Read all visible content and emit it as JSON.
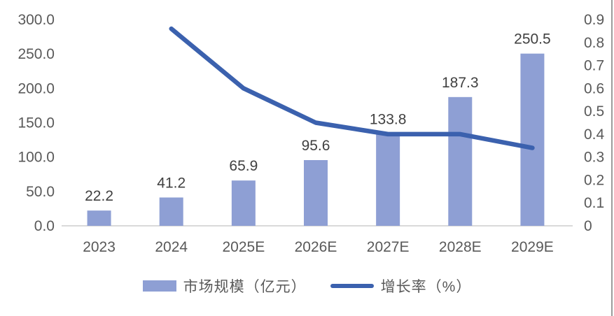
{
  "chart_data": {
    "type": "combo",
    "categories": [
      "2023",
      "2024",
      "2025E",
      "2026E",
      "2027E",
      "2028E",
      "2029E"
    ],
    "series": [
      {
        "name": "市场规模（亿元）",
        "chart_type": "bar",
        "axis": "left",
        "values": [
          22.2,
          41.2,
          65.9,
          95.6,
          133.8,
          187.3,
          250.5
        ],
        "color": "#8E9FD4"
      },
      {
        "name": "增长率（%）",
        "chart_type": "line",
        "axis": "right",
        "values": [
          null,
          0.86,
          0.6,
          0.45,
          0.4,
          0.4,
          0.34
        ],
        "color": "#3B61AE"
      }
    ],
    "bar_labels": [
      "22.2",
      "41.2",
      "65.9",
      "95.6",
      "133.8",
      "187.3",
      "250.5"
    ],
    "left_axis": {
      "min": 0,
      "max": 300,
      "step": 50,
      "tick_labels": [
        "0.0",
        "50.0",
        "100.0",
        "150.0",
        "200.0",
        "250.0",
        "300.0"
      ]
    },
    "right_axis": {
      "min": 0,
      "max": 0.9,
      "step": 0.1,
      "tick_labels": [
        "0",
        "0.1",
        "0.2",
        "0.3",
        "0.4",
        "0.5",
        "0.6",
        "0.7",
        "0.8",
        "0.9"
      ]
    },
    "title": "",
    "xlabel": "",
    "ylabel": "",
    "grid": false,
    "legend_position": "bottom",
    "legend": [
      {
        "label": "市场规模（亿元）",
        "swatch": "bar"
      },
      {
        "label": "增长率（%）",
        "swatch": "line"
      }
    ]
  },
  "colors": {
    "bar": "#8E9FD4",
    "line": "#3B61AE",
    "axis_text": "#595959",
    "data_label": "#404040",
    "baseline": "#D9D9D9",
    "right_border": "#9B9B9B",
    "background": "#FFFFFF"
  }
}
